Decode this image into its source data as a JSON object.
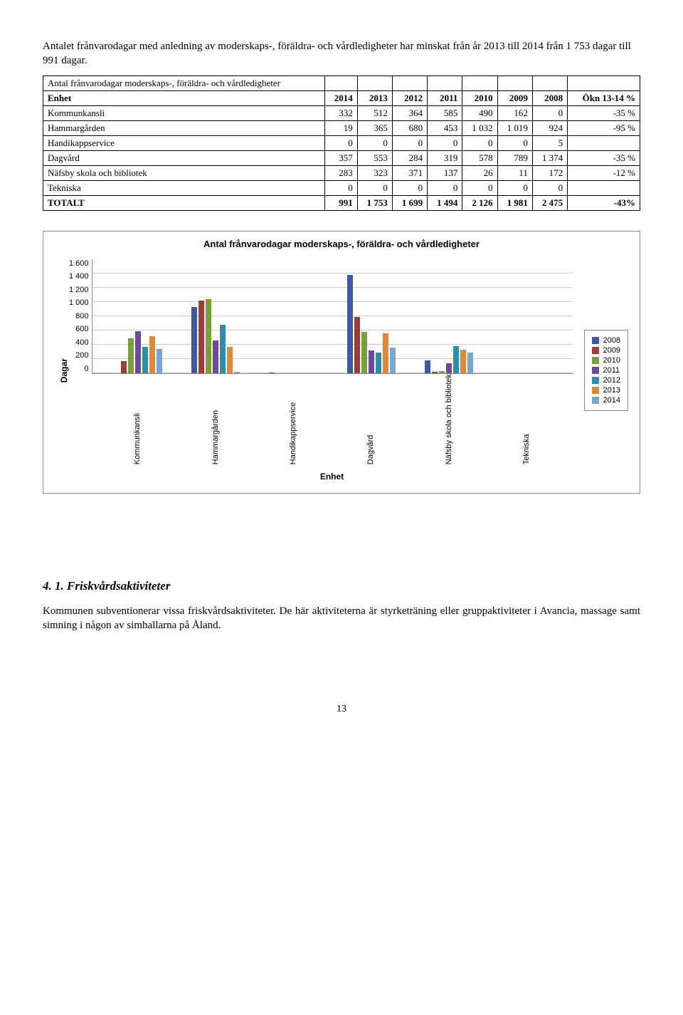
{
  "intro": "Antalet frånvarodagar med anledning av moderskaps-, föräldra- och vårdledigheter har minskat från år 2013 till 2014 från 1 753 dagar till 991 dagar.",
  "table": {
    "title": "Antal frånvarodagar moderskaps-, föräldra- och vårdledigheter",
    "header_enhet": "Enhet",
    "years": [
      "2014",
      "2013",
      "2012",
      "2011",
      "2010",
      "2009",
      "2008"
    ],
    "okn_label": "Ökn 13-14 %",
    "rows": [
      {
        "name": "Kommunkansli",
        "cells": [
          "332",
          "512",
          "364",
          "585",
          "490",
          "162",
          "0"
        ],
        "okn": "-35 %"
      },
      {
        "name": "Hammargården",
        "cells": [
          "19",
          "365",
          "680",
          "453",
          "1 032",
          "1 019",
          "924"
        ],
        "okn": "-95 %"
      },
      {
        "name": "Handikappservice",
        "cells": [
          "0",
          "0",
          "0",
          "0",
          "0",
          "0",
          "5"
        ],
        "okn": ""
      },
      {
        "name": "Dagvård",
        "cells": [
          "357",
          "553",
          "284",
          "319",
          "578",
          "789",
          "1 374"
        ],
        "okn": "-35 %"
      },
      {
        "name": "Näfsby skola och bibliotek",
        "cells": [
          "283",
          "323",
          "371",
          "137",
          "26",
          "11",
          "172"
        ],
        "okn": "-12 %"
      },
      {
        "name": "Tekniska",
        "cells": [
          "0",
          "0",
          "0",
          "0",
          "0",
          "0",
          "0"
        ],
        "okn": ""
      }
    ],
    "totals": {
      "name": "TOTALT",
      "cells": [
        "991",
        "1 753",
        "1 699",
        "1 494",
        "2 126",
        "1 981",
        "2 475"
      ],
      "okn": "-43%"
    }
  },
  "chart": {
    "title": "Antal frånvarodagar moderskaps-, föräldra- och vårdledigheter",
    "ylabel": "Dagar",
    "xlabel": "Enhet",
    "ymax": 1600,
    "yticks": [
      "1 600",
      "1 400",
      "1 200",
      "1 000",
      "800",
      "600",
      "400",
      "200",
      "0"
    ],
    "categories": [
      "Kommunkansli",
      "Hammargården",
      "Handikappservice",
      "Dagvård",
      "Näfsby skola och bibliotek",
      "Tekniska"
    ],
    "series": [
      {
        "year": "2008",
        "color": "#3b5aa3",
        "values": [
          0,
          924,
          5,
          1374,
          172,
          0
        ]
      },
      {
        "year": "2009",
        "color": "#a03b3b",
        "values": [
          162,
          1019,
          0,
          789,
          11,
          0
        ]
      },
      {
        "year": "2010",
        "color": "#7aa03b",
        "values": [
          490,
          1032,
          0,
          578,
          26,
          0
        ]
      },
      {
        "year": "2011",
        "color": "#6b4b9a",
        "values": [
          585,
          453,
          0,
          319,
          137,
          0
        ]
      },
      {
        "year": "2012",
        "color": "#2e8fa8",
        "values": [
          364,
          680,
          0,
          284,
          371,
          0
        ]
      },
      {
        "year": "2013",
        "color": "#d98a3a",
        "values": [
          512,
          365,
          0,
          553,
          323,
          0
        ]
      },
      {
        "year": "2014",
        "color": "#7aa7d1",
        "values": [
          332,
          19,
          0,
          357,
          283,
          0
        ]
      }
    ]
  },
  "section_heading": "4. 1. Friskvårdsaktiviteter",
  "section_body": "Kommunen subventionerar vissa friskvårdsaktiviteter. De här aktiviteterna är styrketräning eller gruppaktiviteter i Avancia, massage samt simning i någon av simhallarna på Åland.",
  "page_number": "13"
}
